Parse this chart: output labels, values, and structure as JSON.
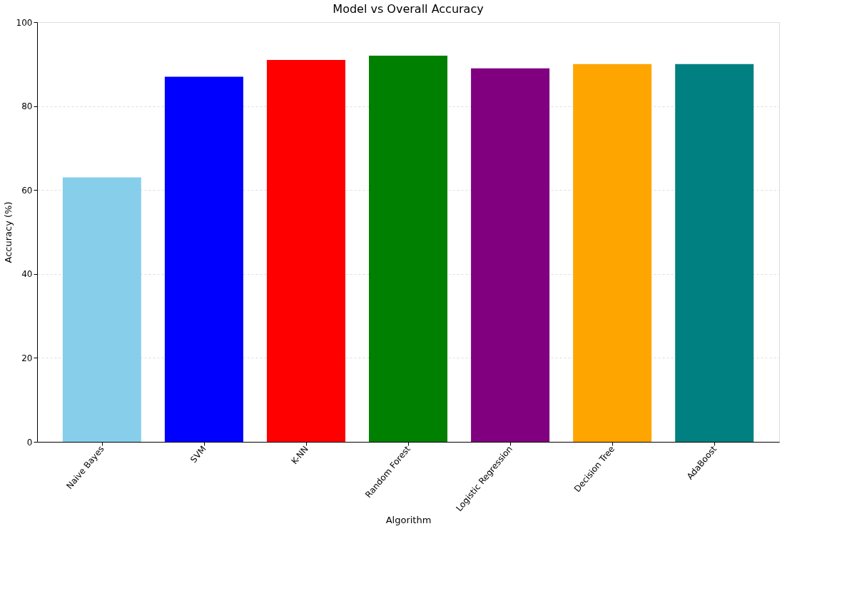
{
  "chart_data": {
    "type": "bar",
    "title": "Model vs Overall Accuracy",
    "xlabel": "Algorithm",
    "ylabel": "Accuracy (%)",
    "categories": [
      "Naive Bayes",
      "SVM",
      "K-NN",
      "Random Forest",
      "Logistic Regression",
      "Decision Tree",
      "AdaBoost"
    ],
    "values": [
      63,
      87,
      91,
      92,
      89,
      90,
      90
    ],
    "colors": [
      "#87ceeb",
      "#0000ff",
      "#ff0000",
      "#008000",
      "#800080",
      "#ffa500",
      "#008080"
    ],
    "ylim": [
      0,
      100
    ],
    "yticks": [
      0,
      20,
      40,
      60,
      80,
      100
    ],
    "grid": "y"
  }
}
